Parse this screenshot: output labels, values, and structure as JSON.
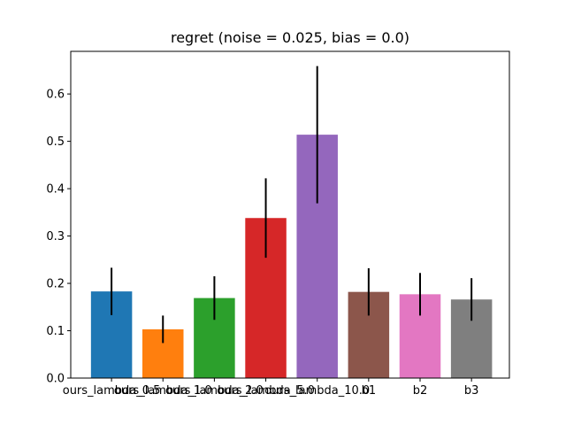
{
  "chart_data": {
    "type": "bar",
    "title": "regret (noise = 0.025, bias = 0.0)",
    "xlabel": "",
    "ylabel": "",
    "categories": [
      "ours_lambda_0.5",
      "ours_lambda_1.0",
      "ours_lambda_2.0",
      "ours_lambda_5.0",
      "ours_lambda_10.0",
      "b1",
      "b2",
      "b3"
    ],
    "values": [
      0.183,
      0.103,
      0.169,
      0.338,
      0.514,
      0.182,
      0.177,
      0.166
    ],
    "error": [
      0.05,
      0.029,
      0.046,
      0.084,
      0.145,
      0.05,
      0.045,
      0.045
    ],
    "colors": [
      "#1f77b4",
      "#ff7f0e",
      "#2ca02c",
      "#d62728",
      "#9467bd",
      "#8c564b",
      "#e377c2",
      "#7f7f7f"
    ],
    "ylim": [
      0,
      0.69
    ],
    "yticks": [
      0.0,
      0.1,
      0.2,
      0.3,
      0.4,
      0.5,
      0.6
    ],
    "ytick_labels": [
      "0.0",
      "0.1",
      "0.2",
      "0.3",
      "0.4",
      "0.5",
      "0.6"
    ],
    "grid": false,
    "legend": "none"
  }
}
